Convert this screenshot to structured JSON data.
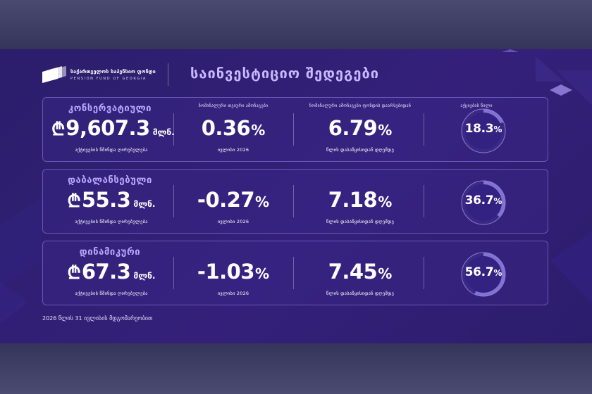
{
  "header": {
    "logo_text_ka": "საქართველოს საპენსიო ფონდი",
    "logo_text_en": "PENSION FUND OF GEORGIA",
    "title": "საინვესტიციო შედეგები"
  },
  "columns": {
    "monthly_header": "ნომინალური თვიური ამონაგები",
    "since_inception_header": "ნომინალური ამონაგები ფონდის დაარსებიდან",
    "equity_share_header": "აქციების წილი"
  },
  "funds": [
    {
      "name": "კონსერვატიული",
      "currency_symbol": "₾",
      "amount": "9,607.3",
      "amount_unit": "მლნ.",
      "amount_caption": "აქტივების წმინდა ღირებულება",
      "monthly_return": "0.36",
      "monthly_caption": "ივლისი 2026",
      "inception_return": "6.79",
      "inception_caption": "წლის დასაწყისიდან დღემდე",
      "equity_share": "18.3",
      "percent_sign": "%"
    },
    {
      "name": "დაბალანსებული",
      "currency_symbol": "₾",
      "amount": "55.3",
      "amount_unit": "მლნ.",
      "amount_caption": "აქტივების წმინდა ღირებულება",
      "monthly_return": "-0.27",
      "monthly_caption": "ივლისი 2026",
      "inception_return": "7.18",
      "inception_caption": "წლის დასაწყისიდან დღემდე",
      "equity_share": "36.7",
      "percent_sign": "%"
    },
    {
      "name": "დინამიკური",
      "currency_symbol": "₾",
      "amount": "67.3",
      "amount_unit": "მლნ.",
      "amount_caption": "აქტივების წმინდა ღირებულება",
      "monthly_return": "-1.03",
      "monthly_caption": "ივლისი 2026",
      "inception_return": "7.45",
      "inception_caption": "წლის დასაწყისიდან დღემდე",
      "equity_share": "56.7",
      "percent_sign": "%"
    }
  ],
  "footnote": "2026 წლის 31 ივლისის მდგომარეობით",
  "colors": {
    "panel": "#2f1f74",
    "accent": "#b9a8ff",
    "donut_track": "#3a2a86",
    "donut_fill": "#8f7fe0"
  }
}
